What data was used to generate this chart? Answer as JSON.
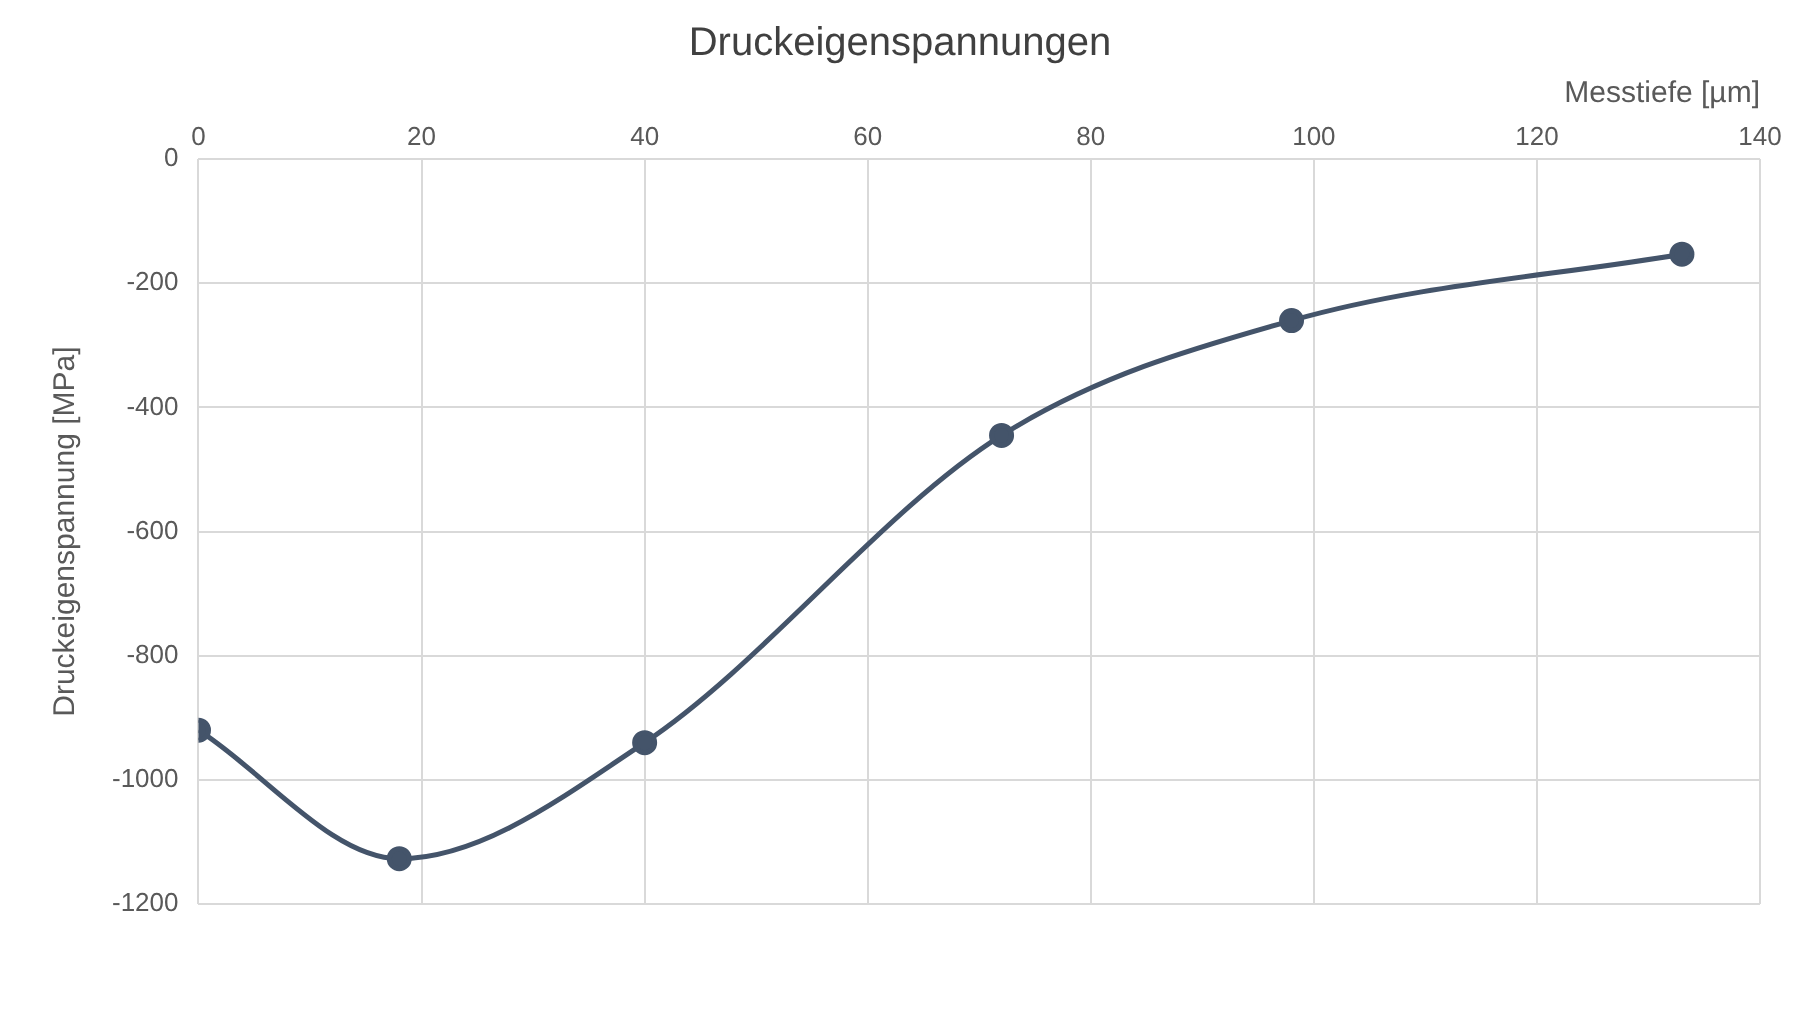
{
  "chart_data": {
    "type": "line",
    "title": "Druckeigenspannungen",
    "xlabel": "Messtiefe [µm]",
    "ylabel": "Druckeigenspannung [MPa]",
    "x": [
      0,
      18,
      40,
      72,
      98,
      133
    ],
    "series": [
      {
        "color": "#44546a",
        "values": [
          -920,
          -1127,
          -940,
          -445,
          -260,
          -153
        ]
      }
    ],
    "xlim": [
      0,
      140
    ],
    "xticks": [
      0,
      20,
      40,
      60,
      80,
      100,
      120,
      140
    ],
    "ylim": [
      -1200,
      0
    ],
    "yticks": [
      0,
      -200,
      -400,
      -600,
      -800,
      -1000,
      -1200
    ],
    "grid": true,
    "legend": false,
    "marker": "circle",
    "line_style": "solid"
  }
}
